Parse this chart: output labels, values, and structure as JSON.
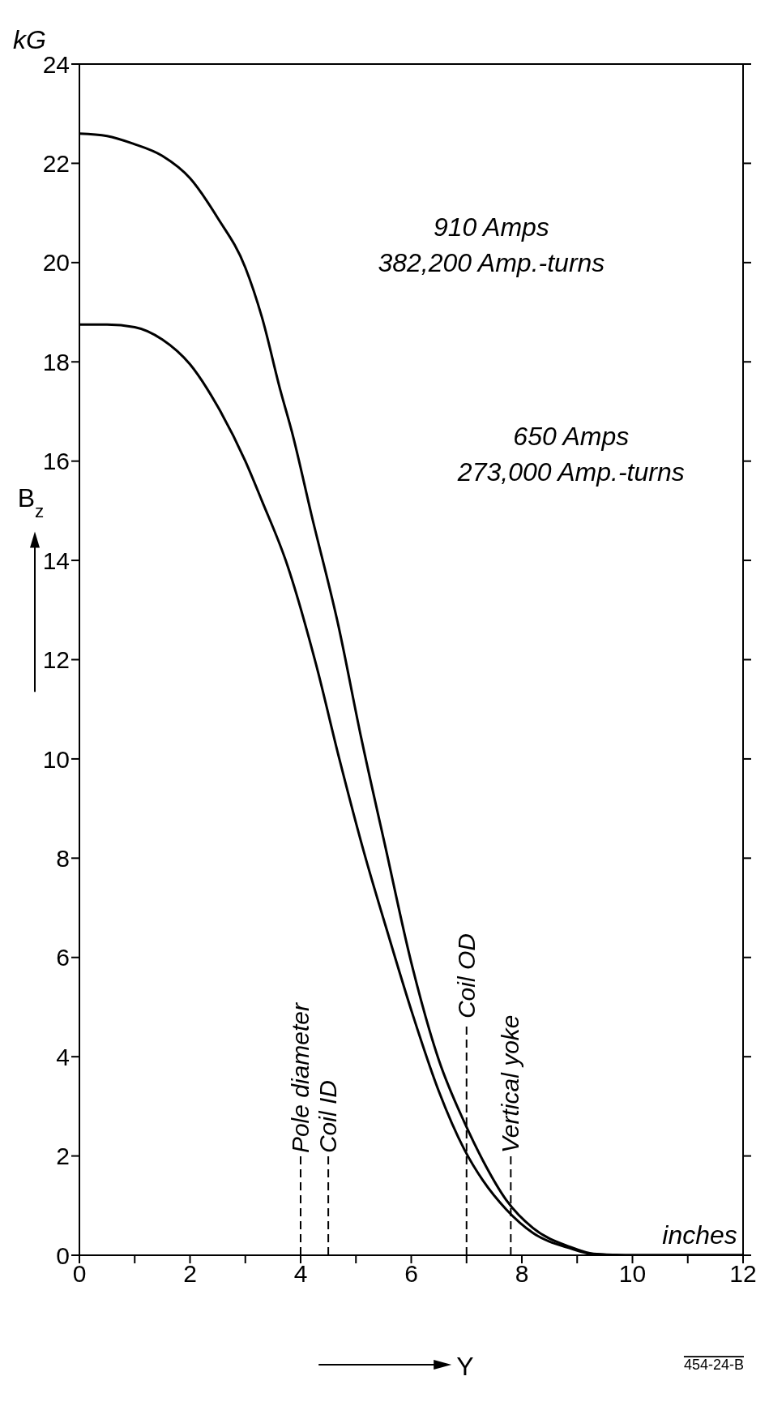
{
  "chart_data": {
    "type": "line",
    "xlabel": "Y",
    "ylabel": "B$_{z}$",
    "annotations": [
      "910 Amps\n382,200 Amp.-turns",
      "650 Amps\n273,000 Amp.-turns",
      "kG",
      "inches",
      "454-24-B"
    ],
    "series": [
      {
        "color": "#000000",
        "x": [
          0,
          0.5,
          0.96,
          1.5,
          2,
          2.5,
          3,
          3.3,
          3.64,
          3.84,
          4.2,
          4.68,
          5.1,
          5.53,
          6,
          6.5,
          6.96,
          7.3,
          7.72,
          8.2,
          8.87,
          9.3,
          10,
          11,
          12
        ],
        "values": [
          22.6,
          22.55,
          22.4,
          22.15,
          21.7,
          20.9,
          19.9,
          18.9,
          17.4,
          16.6,
          14.9,
          12.7,
          10.4,
          8.24,
          5.9,
          3.93,
          2.68,
          1.9,
          1.11,
          0.55,
          0.17,
          0.03,
          0,
          0,
          0
        ]
      },
      {
        "color": "#000000",
        "x": [
          0,
          0.5,
          1,
          1.5,
          2,
          2.5,
          3,
          3.3,
          3.73,
          4.28,
          4.7,
          5.15,
          5.6,
          6.02,
          6.5,
          6.96,
          7.3,
          7.72,
          8.2,
          8.87,
          9.3,
          10,
          11,
          12
        ],
        "values": [
          18.75,
          18.75,
          18.7,
          18.45,
          17.95,
          17.1,
          16.0,
          15.2,
          14.0,
          11.9,
          10.0,
          8.1,
          6.4,
          4.87,
          3.3,
          2.13,
          1.5,
          0.92,
          0.45,
          0.14,
          0.02,
          0,
          0,
          0
        ]
      }
    ],
    "xlim": [
      0,
      12
    ],
    "xticks": [
      0,
      {
        "value": 1,
        "label": null
      },
      2,
      {
        "value": 3,
        "label": null
      },
      4,
      {
        "value": 5,
        "label": null
      },
      6,
      {
        "value": 7,
        "label": null
      },
      8,
      {
        "value": 9,
        "label": null
      },
      10,
      {
        "value": 11,
        "label": null
      },
      12
    ],
    "ylim": [
      0,
      24
    ],
    "yticks": [
      0,
      2,
      4,
      6,
      8,
      10,
      12,
      14,
      16,
      18,
      20,
      22,
      24
    ],
    "ref_lines": [
      {
        "axis": "x",
        "value": 4,
        "label": "Pole diameter",
        "line_style": "dashed"
      },
      {
        "axis": "x",
        "value": 4.5,
        "label": "Coil ID",
        "line_style": "dashed"
      },
      {
        "axis": "x",
        "value": 7,
        "label": "Coil OD",
        "line_style": "dashed"
      },
      {
        "axis": "x",
        "value": 7.8,
        "label": "Vertical yoke",
        "line_style": "dashed"
      }
    ],
    "marker": "none",
    "line_style": "solid"
  }
}
